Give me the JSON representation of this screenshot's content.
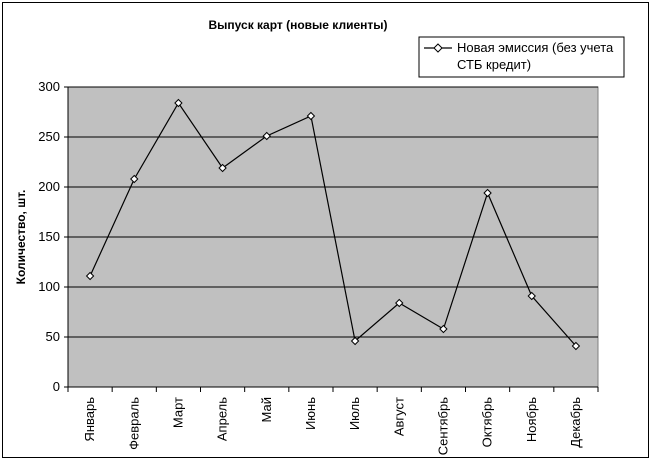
{
  "chart_data": {
    "type": "line",
    "title": "Выпуск карт (новые клиенты)",
    "xlabel": "",
    "ylabel": "Количество, шт.",
    "categories": [
      "Январь",
      "Февраль",
      "Март",
      "Апрель",
      "Май",
      "Июнь",
      "Июль",
      "Август",
      "Сентябрь",
      "Октябрь",
      "Ноябрь",
      "Декабрь"
    ],
    "series": [
      {
        "name": "Новая эмиссия (без учета СТБ кредит)",
        "name_lines": [
          "Новая эмиссия (без учета",
          "СТБ кредит)"
        ],
        "values": [
          111,
          208,
          284,
          219,
          251,
          271,
          46,
          84,
          58,
          194,
          91,
          41
        ],
        "marker": "diamond",
        "color": "#000000"
      }
    ],
    "ylim": [
      0,
      300
    ],
    "yticks": [
      0,
      50,
      100,
      150,
      200,
      250,
      300
    ],
    "grid": true,
    "legend_position": "top-right",
    "plot_background": "#c0c0c0"
  }
}
